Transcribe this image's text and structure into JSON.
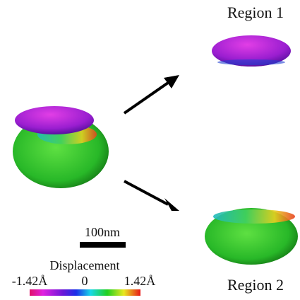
{
  "labels": {
    "region1": "Region 1",
    "region2": "Region 2"
  },
  "scale_bar": {
    "label": "100nm"
  },
  "colorbar": {
    "title": "Displacement",
    "min_label": "-1.42Å",
    "mid_label": "0",
    "max_label": "1.42Å"
  }
}
